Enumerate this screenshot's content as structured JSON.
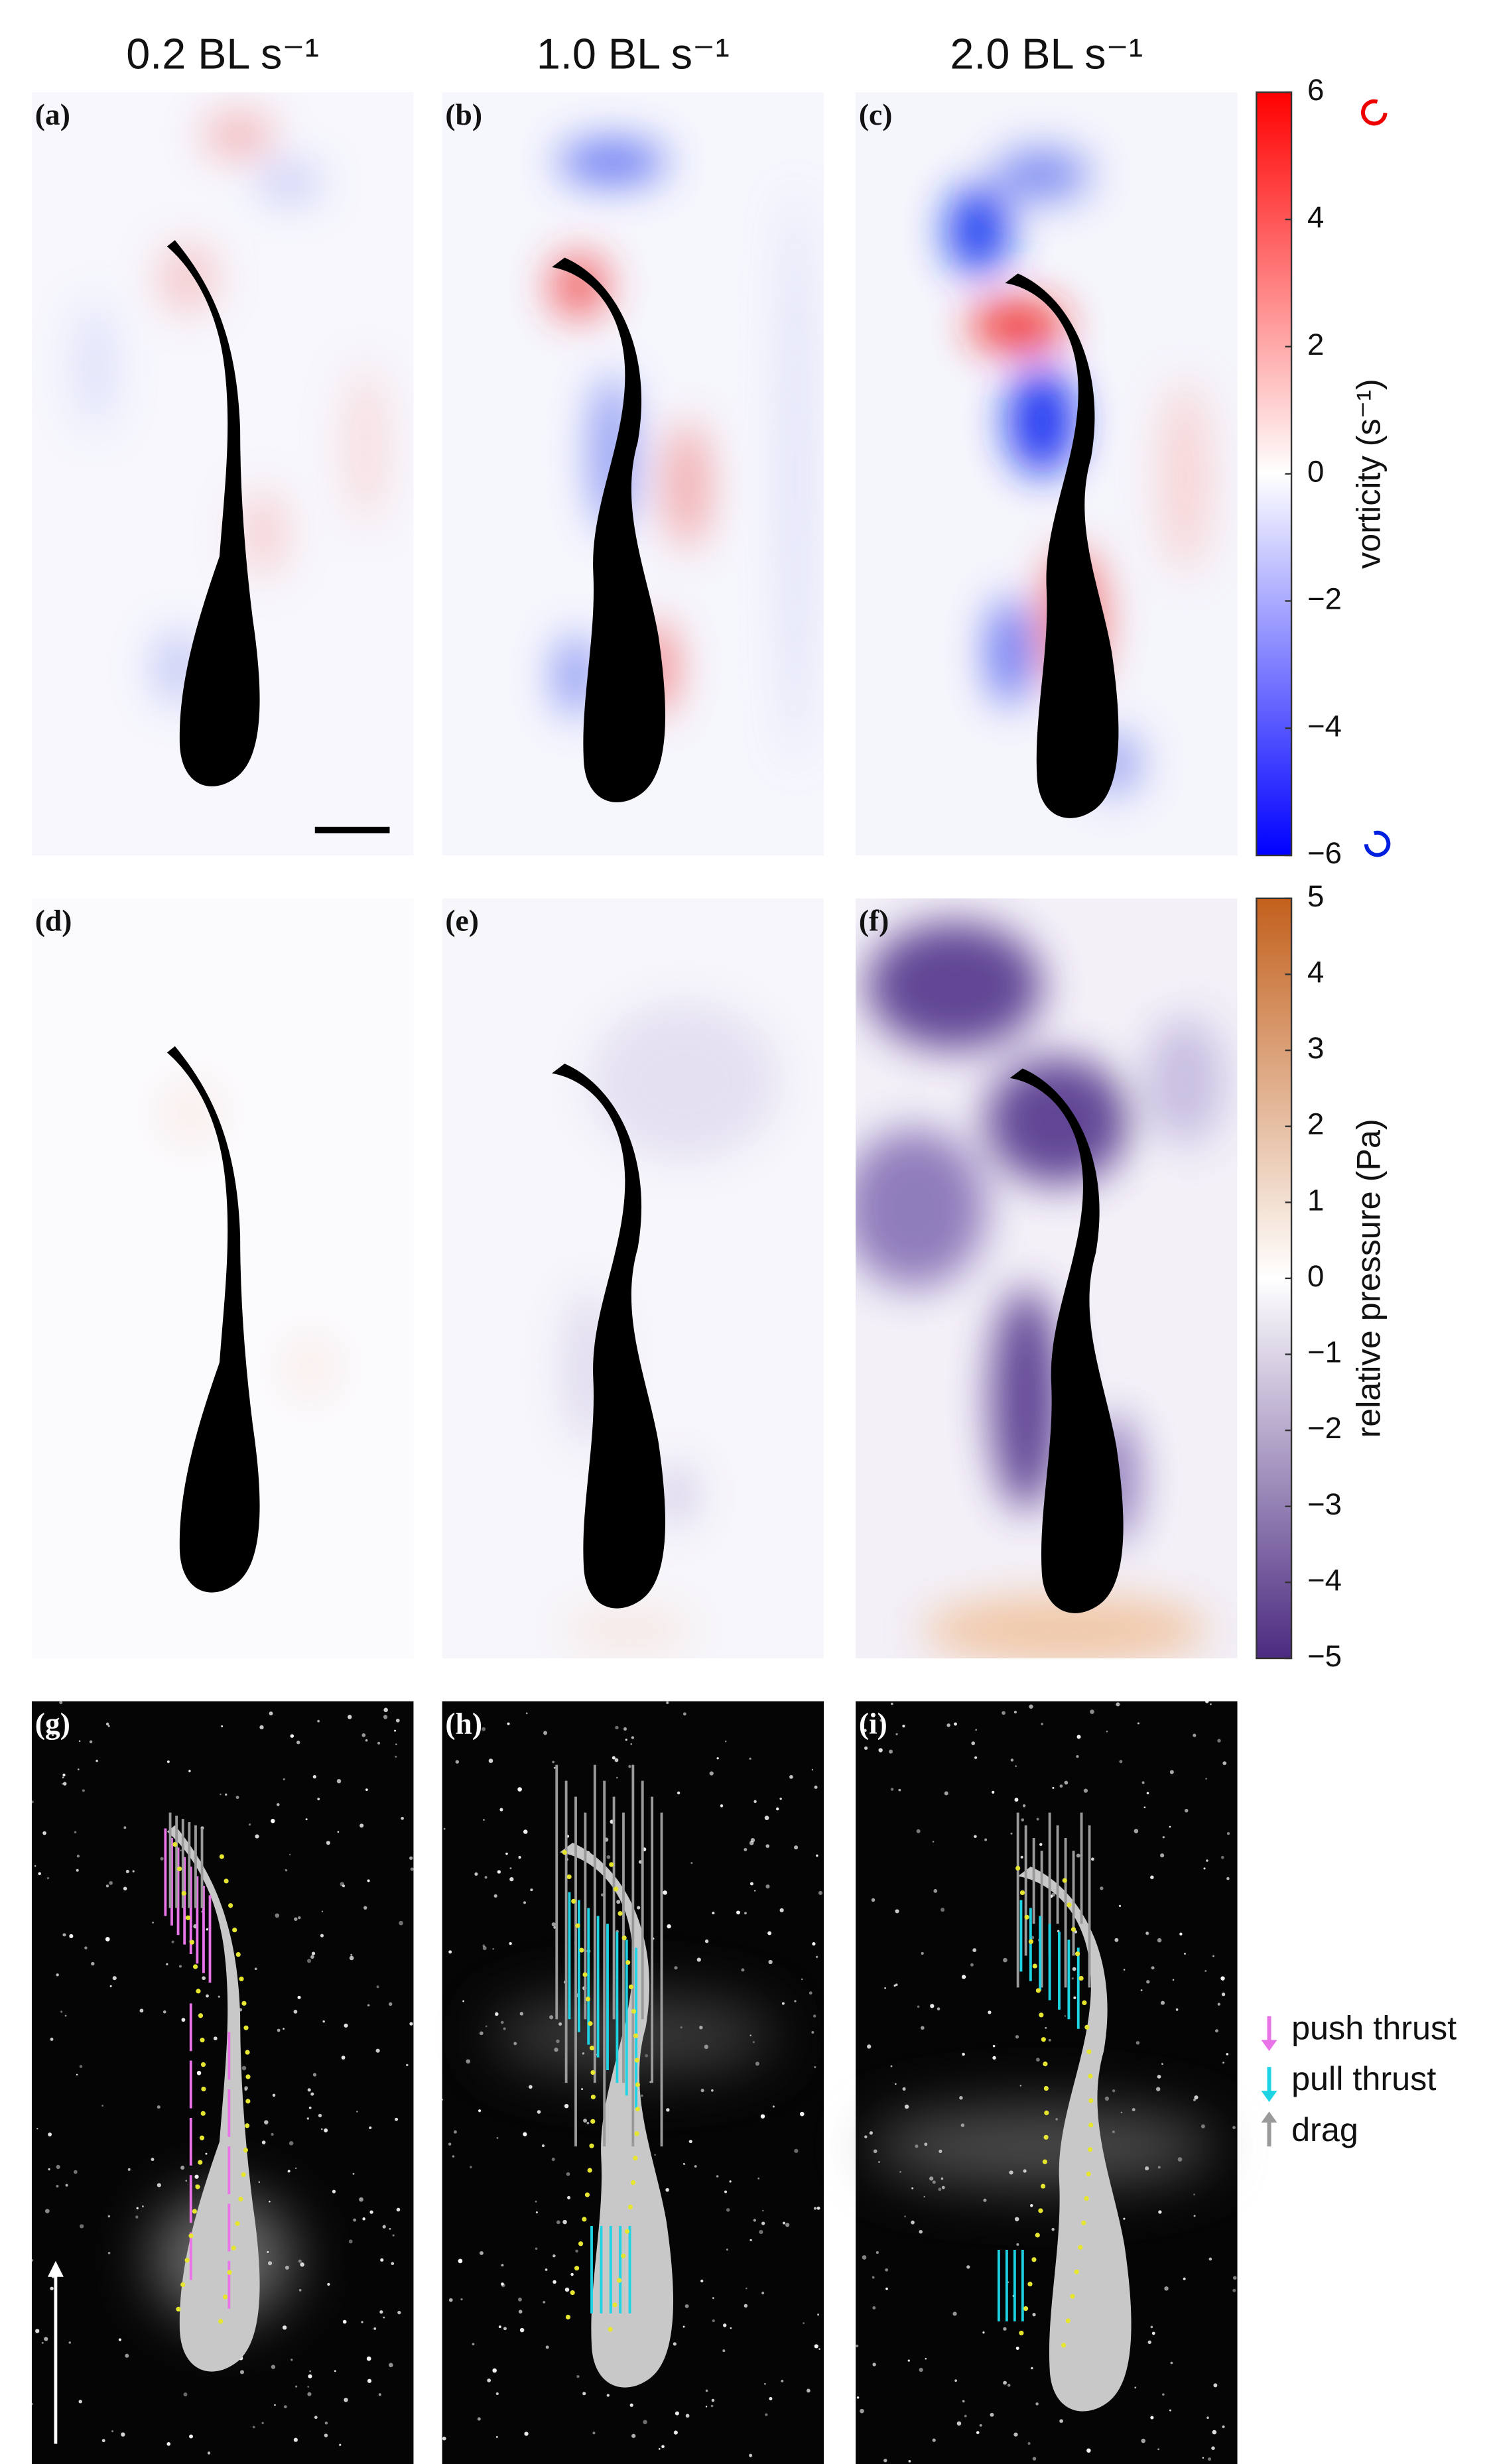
{
  "figure": {
    "columns": [
      "0.2 BL s⁻¹",
      "1.0 BL s⁻¹",
      "2.0 BL s⁻¹"
    ],
    "panels": [
      "(a)",
      "(b)",
      "(c)",
      "(d)",
      "(e)",
      "(f)",
      "(g)",
      "(h)",
      "(i)"
    ],
    "colorbars": [
      {
        "label": "vorticity (s⁻¹)",
        "lim": [
          -6,
          6
        ],
        "ticks": [
          6,
          4,
          2,
          0,
          {
            "value": -2,
            "label": "−2"
          },
          {
            "value": -4,
            "label": "−4"
          },
          {
            "value": -6,
            "label": "−6"
          }
        ],
        "colors": [
          "#0000ff",
          "#ffffff",
          "#ff0000"
        ]
      },
      {
        "label": "relative pressure (Pa)",
        "lim": [
          -5,
          5
        ],
        "ticks": [
          5,
          4,
          3,
          2,
          1,
          0,
          {
            "value": -1,
            "label": "−1"
          },
          {
            "value": -2,
            "label": "−2"
          },
          {
            "value": -3,
            "label": "−3"
          },
          {
            "value": -4,
            "label": "−4"
          },
          {
            "value": -5,
            "label": "−5"
          }
        ],
        "colors": [
          "#4b2a80",
          "#ffffff",
          "#c2601c"
        ]
      }
    ],
    "legend": [
      {
        "name": "push thrust",
        "color": "#e874e8"
      },
      {
        "name": "pull thrust",
        "color": "#1ed4e4"
      },
      {
        "name": "drag",
        "color": "#9a9a9a"
      }
    ]
  }
}
